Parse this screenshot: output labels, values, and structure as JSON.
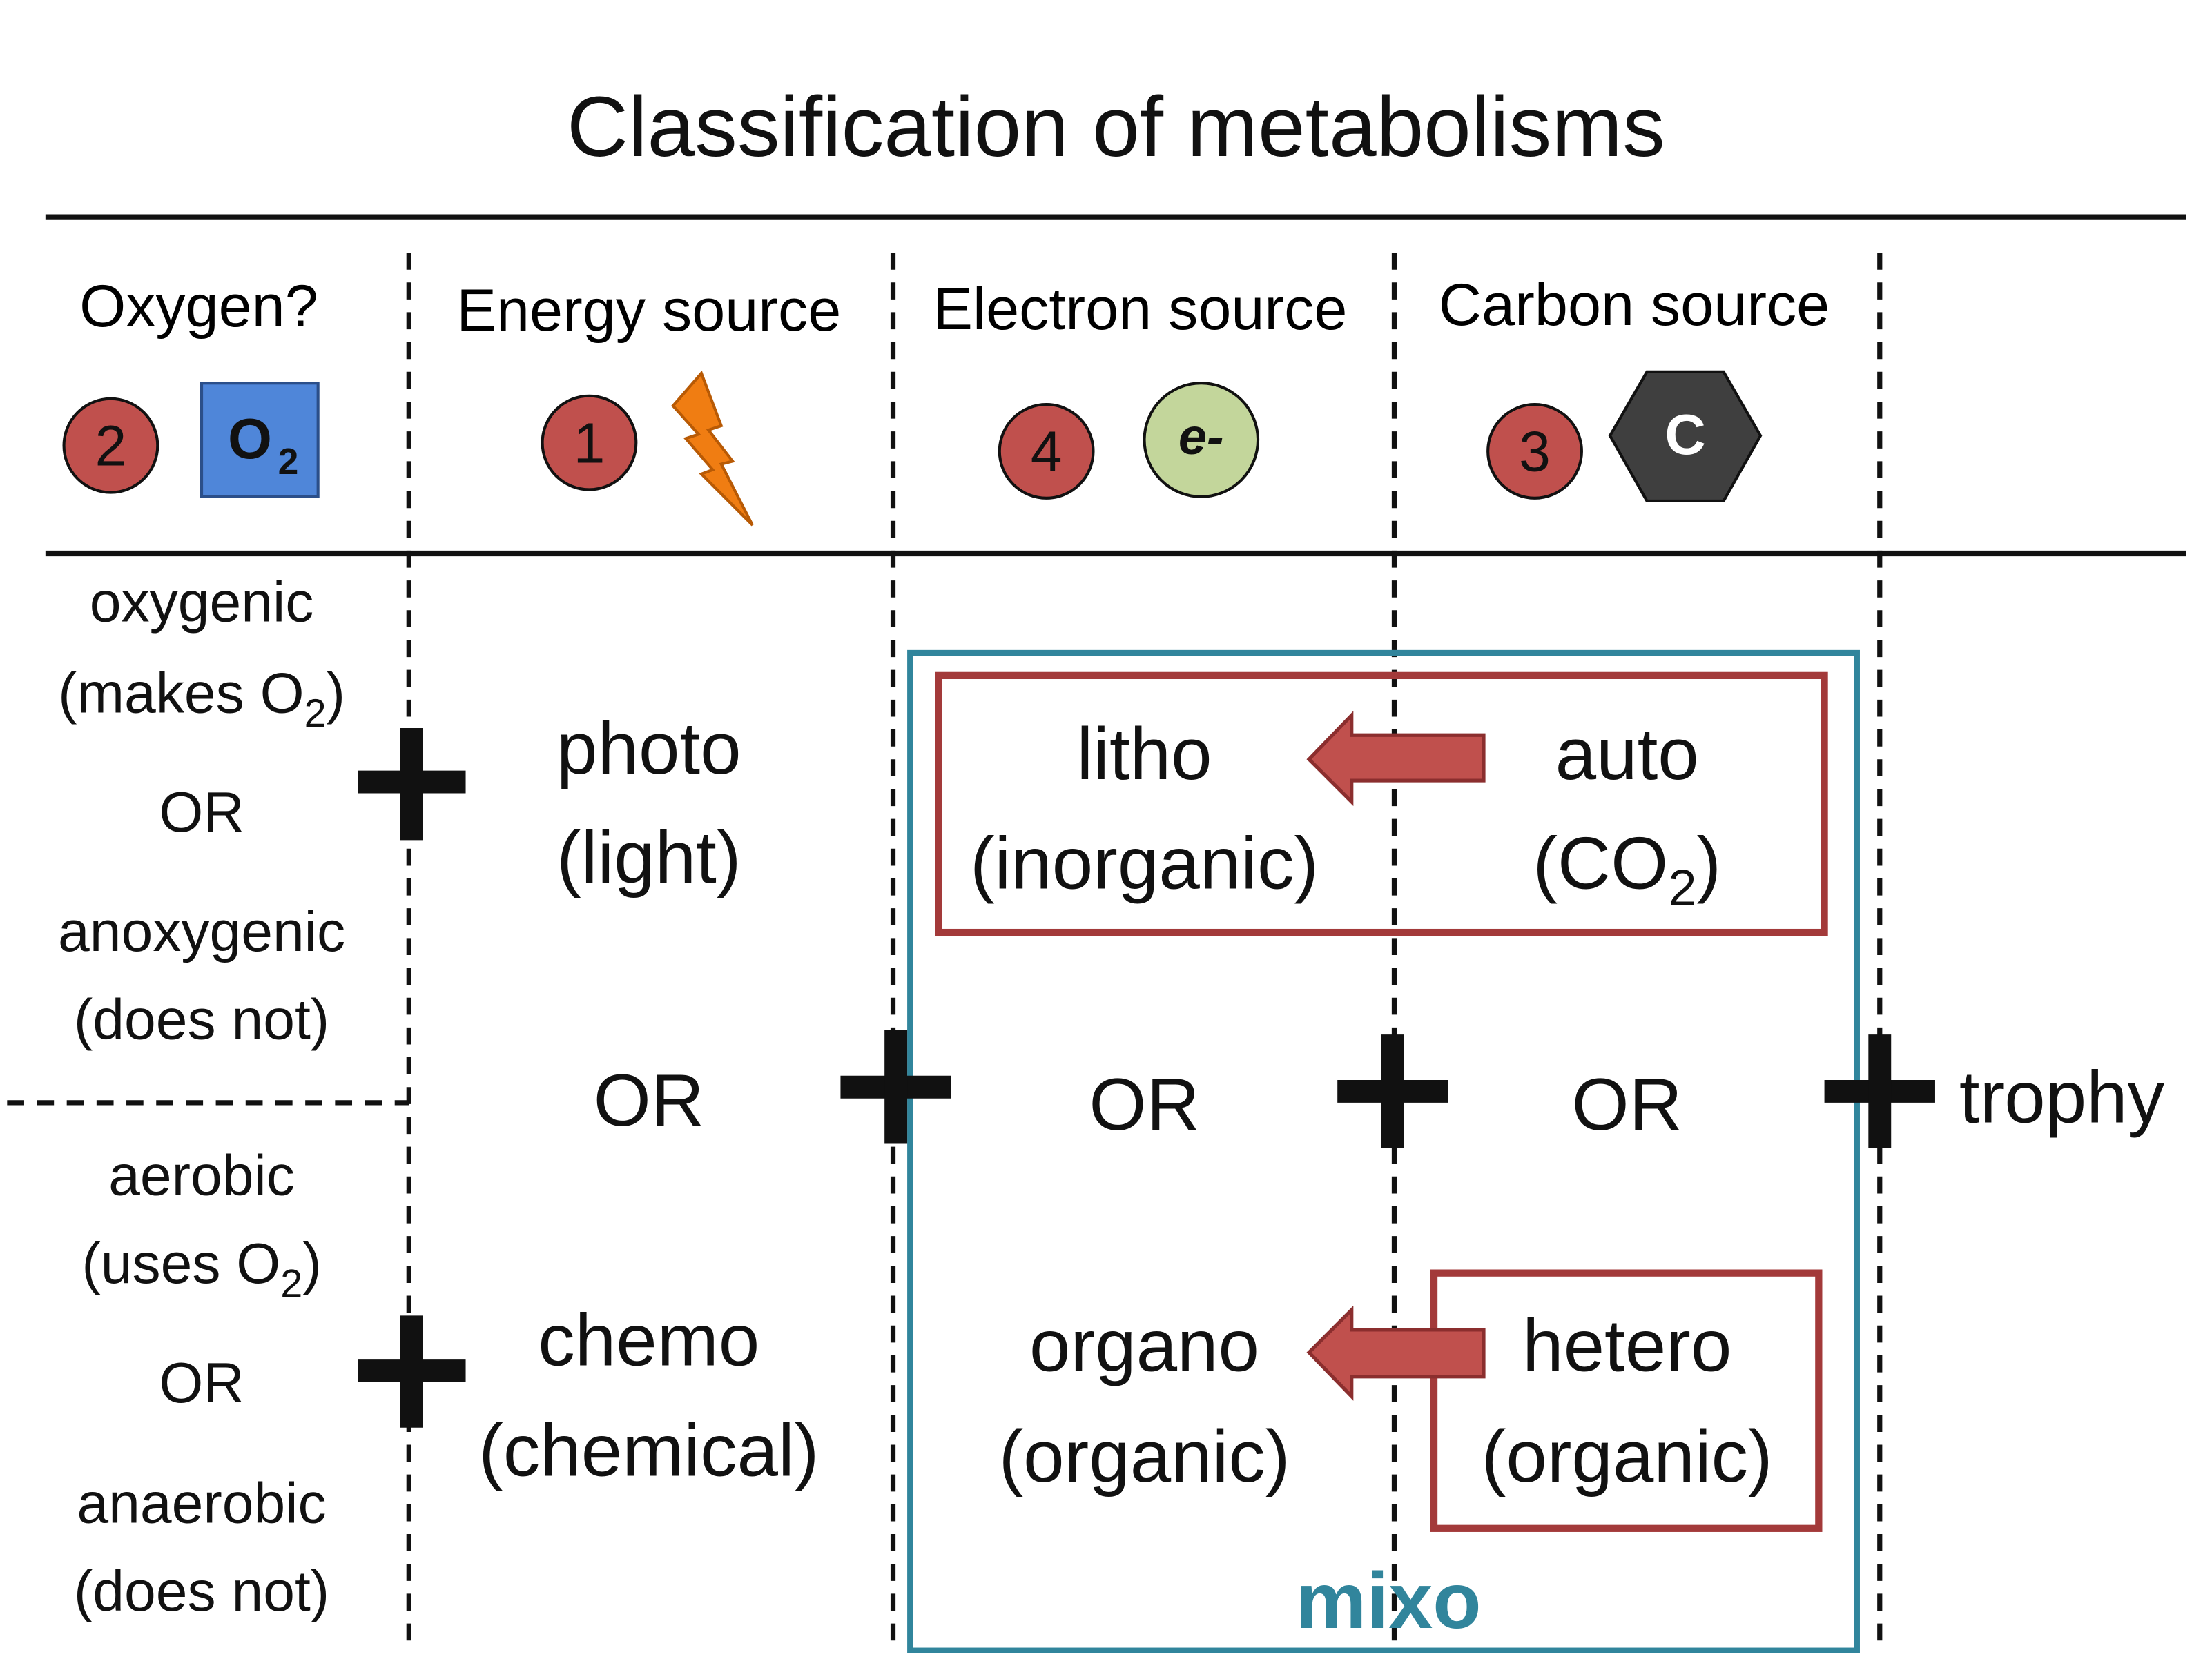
{
  "title": "Classification of metabolisms",
  "headers": {
    "oxygen": {
      "label": "Oxygen?",
      "badge": "2",
      "icon": "O",
      "icon_sub": "2"
    },
    "energy": {
      "label": "Energy source",
      "badge": "1"
    },
    "electron": {
      "label": "Electron source",
      "badge": "4",
      "icon": "e-"
    },
    "carbon": {
      "label": "Carbon source",
      "badge": "3",
      "icon": "C"
    }
  },
  "oxygen_col": {
    "oxygenic": "oxygenic",
    "makes_pre": "(makes O",
    "makes_sub": "2",
    "makes_post": ")",
    "or1": "OR",
    "anoxygenic": "anoxygenic",
    "does_not_1": "(does not)",
    "aerobic": "aerobic",
    "uses_pre": "(uses O",
    "uses_sub": "2",
    "uses_post": ")",
    "or2": "OR",
    "anaerobic": "anaerobic",
    "does_not_2": "(does not)"
  },
  "energy_col": {
    "photo": "photo",
    "light": "(light)",
    "or": "OR",
    "chemo": "chemo",
    "chemical": "(chemical)"
  },
  "electron_col": {
    "litho": "litho",
    "inorganic": "(inorganic)",
    "or": "OR",
    "organo": "organo",
    "organic": "(organic)"
  },
  "carbon_col": {
    "auto": "auto",
    "co2_pre": "(CO",
    "co2_sub": "2",
    "co2_post": ")",
    "or": "OR",
    "hetero": "hetero",
    "organic": "(organic)"
  },
  "suffix": "trophy",
  "mixo": "mixo",
  "colors": {
    "badge_red": "#c0504d",
    "o2_blue": "#4f86d9",
    "bolt_orange": "#f07d12",
    "electron_green": "#c3d69b",
    "carbon_gray": "#3f3f3f",
    "box_red": "#a33a3a",
    "mixo_teal": "#31859c"
  }
}
